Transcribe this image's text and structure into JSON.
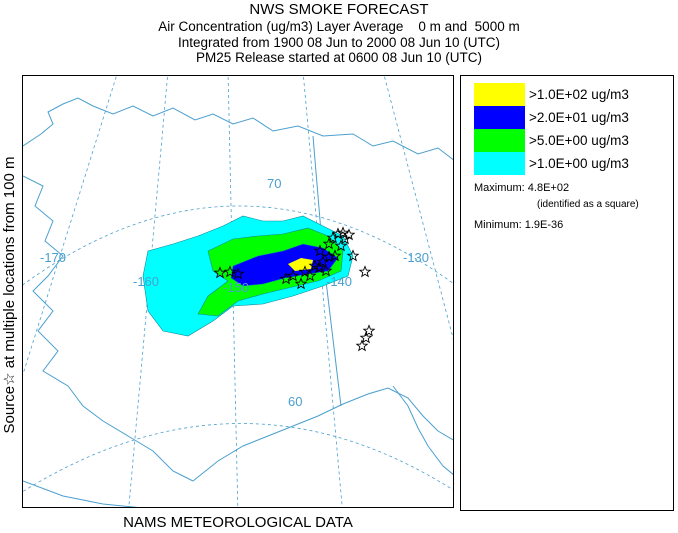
{
  "title": {
    "line1": "NWS SMOKE FORECAST",
    "line2": "Air Concentration (ug/m3) Layer Average    0 m and  5000 m",
    "line3": "Integrated from 1900 08 Jun to 2000 08 Jun 10 (UTC)",
    "line4": "PM25 Release started at 0600 08 Jun 10 (UTC)"
  },
  "side_label": "Source☆ at multiple locations   from  100 m",
  "bottom_label": "NAMS METEOROLOGICAL DATA",
  "map": {
    "latitude_labels": [
      "70",
      "60"
    ],
    "longitude_labels": [
      "-170",
      "-160",
      "-150",
      "-140",
      "-130"
    ],
    "colors": {
      "level_1": "#00ffff",
      "level_2": "#00ff00",
      "level_3": "#0000ff",
      "level_4": "#ffff00",
      "coast": "#4a9fcf",
      "graticule": "#4a9fcf",
      "source_marker": "#000000"
    }
  },
  "legend": {
    "entries": [
      {
        "label": ">1.0E+02 ug/m3",
        "color": "#ffff00"
      },
      {
        "label": ">2.0E+01 ug/m3",
        "color": "#0000ff"
      },
      {
        "label": ">5.0E+00 ug/m3",
        "color": "#00ff00"
      },
      {
        "label": ">1.0E+00 ug/m3",
        "color": "#00ffff"
      }
    ],
    "maximum_label": "Maximum:",
    "maximum_value": "4.8E+02",
    "maximum_note": "(identified as a square)",
    "minimum_label": "Minimum:",
    "minimum_value": "1.9E-36"
  }
}
